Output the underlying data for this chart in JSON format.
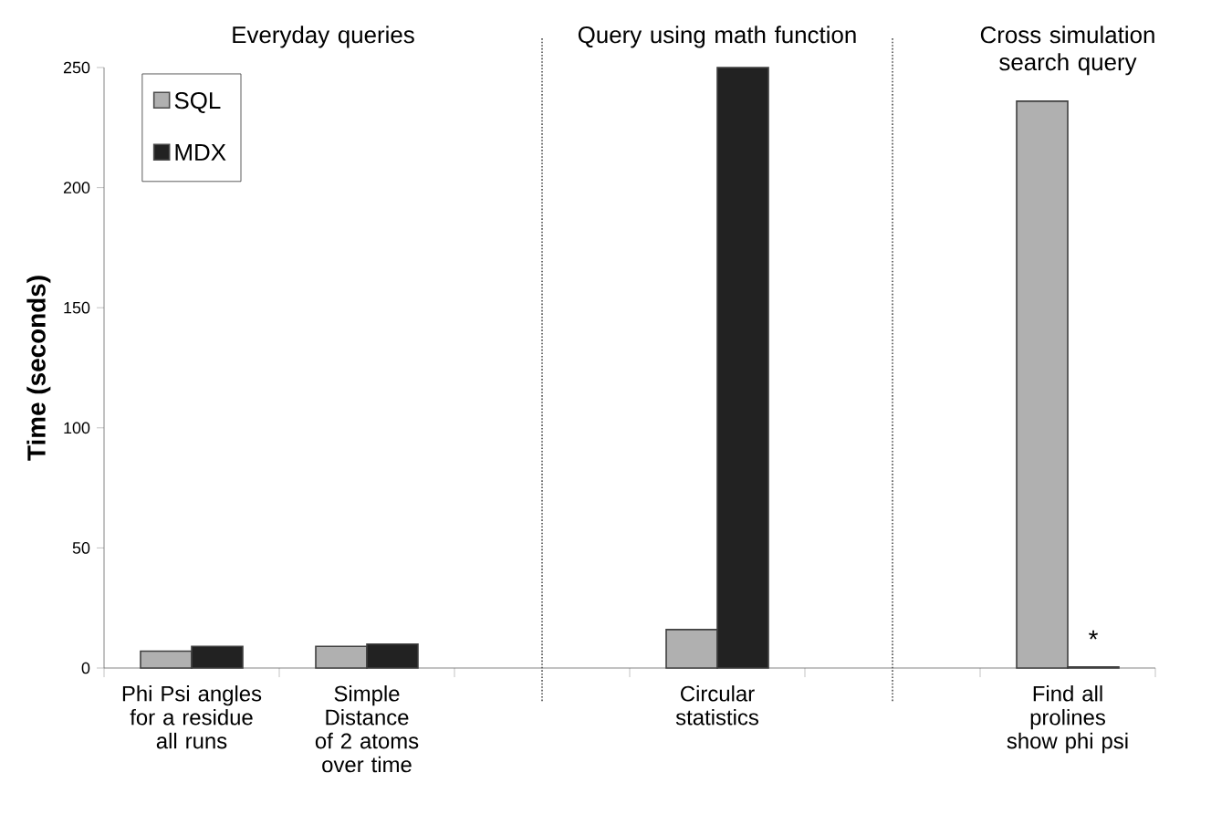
{
  "chart_data": {
    "type": "bar",
    "ylabel": "Time (seconds)",
    "categories": [
      "Phi Psi angles for a residue all runs",
      "Simple Distance of 2 atoms over time",
      null,
      "Circular statistics",
      null,
      "Find all prolines show phi psi"
    ],
    "series": [
      {
        "name": "SQL",
        "color": "#b0b0b0",
        "values": [
          7,
          9,
          null,
          16,
          null,
          236
        ]
      },
      {
        "name": "MDX",
        "color": "#222222",
        "values": [
          9,
          10,
          null,
          250,
          null,
          0.5
        ]
      }
    ],
    "ylim": [
      0,
      250
    ],
    "yticks": [
      0,
      50,
      100,
      150,
      200,
      250
    ],
    "legend": "top left",
    "annotations": [
      "Everyday queries",
      "Query using math function",
      "Cross simulation search query",
      {
        "text": "*",
        "x": "Find all prolines show phi psi",
        "y": 12
      }
    ]
  }
}
